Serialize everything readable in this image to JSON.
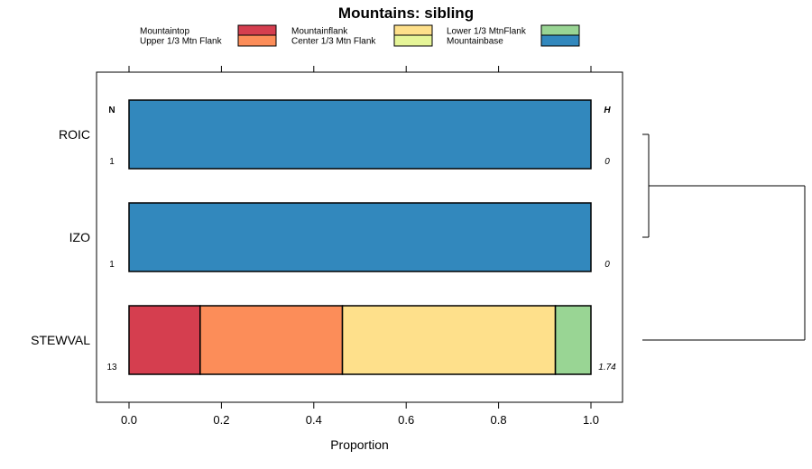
{
  "chart_data": {
    "type": "bar",
    "orientation": "horizontal",
    "stacked": true,
    "title": "Mountains: sibling",
    "xlabel": "Proportion",
    "ylabel": "",
    "xlim": [
      0,
      1
    ],
    "xticks": [
      "0.0",
      "0.2",
      "0.4",
      "0.6",
      "0.8",
      "1.0"
    ],
    "categories": [
      "ROIC",
      "IZO",
      "STEWVAL"
    ],
    "column_headers": {
      "left": "N",
      "right": "H"
    },
    "n_values": [
      "1",
      "1",
      "13"
    ],
    "h_values": [
      "0",
      "0",
      "1.74"
    ],
    "legend_position": "top",
    "series": [
      {
        "name": "Mountaintop",
        "color": "#D53E4F",
        "values": [
          0,
          0,
          0.154
        ]
      },
      {
        "name": "Upper 1/3 Mtn Flank",
        "color": "#FC8D59",
        "values": [
          0,
          0,
          0.308
        ]
      },
      {
        "name": "Mountainflank",
        "color": "#FEE08B",
        "values": [
          0,
          0,
          0.461
        ]
      },
      {
        "name": "Center 1/3 Mtn Flank",
        "color": "#E6F598",
        "values": [
          0,
          0,
          0
        ]
      },
      {
        "name": "Lower 1/3 MtnFlank",
        "color": "#99D594",
        "values": [
          0,
          0,
          0.077
        ]
      },
      {
        "name": "Mountainbase",
        "color": "#3288BD",
        "values": [
          1,
          1,
          0
        ]
      }
    ],
    "dendrogram": true
  }
}
